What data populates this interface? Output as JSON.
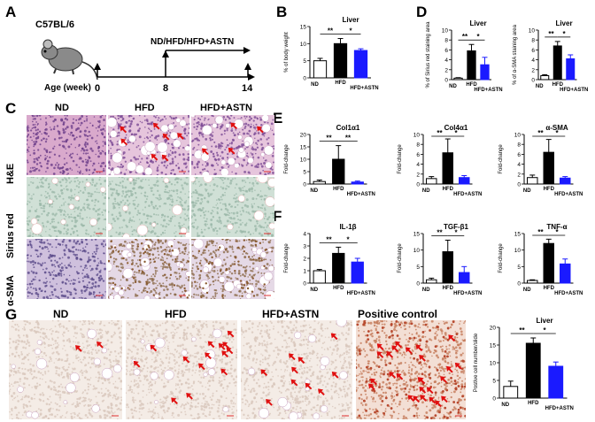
{
  "panels": {
    "A": "A",
    "B": "B",
    "C": "C",
    "D": "D",
    "E": "E",
    "F": "F",
    "G": "G"
  },
  "panelA": {
    "strain": "C57BL/6",
    "treatment": "ND/HFD/HFD+ASTN",
    "age_label": "Age (week)",
    "ticks": [
      "0",
      "8",
      "14"
    ]
  },
  "panelC": {
    "columns": [
      "ND",
      "HFD",
      "HFD+ASTN"
    ],
    "rows": [
      "H&E",
      "Sirius red",
      "α-SMA"
    ]
  },
  "panelG": {
    "columns": [
      "ND",
      "HFD",
      "HFD+ASTN",
      "Positive control"
    ]
  },
  "colors": {
    "nd": "#ffffff",
    "hfd": "#000000",
    "astn": "#1a1aff",
    "arrow": "#e01010"
  },
  "chart_data": [
    {
      "id": "B",
      "type": "bar",
      "title": "Liver",
      "ylabel": "% of body weight",
      "categories": [
        "ND",
        "HFD",
        "HFD+ASTN"
      ],
      "values": [
        5,
        10,
        8
      ],
      "errors": [
        0.7,
        1.5,
        0.5
      ],
      "ylim": [
        0,
        15
      ],
      "yticks": [
        0,
        5,
        10,
        15
      ],
      "sig": [
        {
          "a": 0,
          "b": 1,
          "label": "**"
        },
        {
          "a": 1,
          "b": 2,
          "label": "*"
        }
      ]
    },
    {
      "id": "D1",
      "type": "bar",
      "title": "Liver",
      "ylabel": "% of Sirius red staining area",
      "categories": [
        "ND",
        "HFD",
        "HFD+ASTN"
      ],
      "values": [
        0.3,
        5.8,
        3.0
      ],
      "errors": [
        0.1,
        1.3,
        1.5
      ],
      "ylim": [
        0,
        10
      ],
      "yticks": [
        0,
        2,
        4,
        6,
        8,
        10
      ],
      "sig": [
        {
          "a": 0,
          "b": 1,
          "label": "**"
        },
        {
          "a": 1,
          "b": 2,
          "label": "*"
        }
      ]
    },
    {
      "id": "D2",
      "type": "bar",
      "title": "Liver",
      "ylabel": "% of α-SMA staining area",
      "categories": [
        "ND",
        "HFD",
        "HFD+ASTN"
      ],
      "values": [
        0.8,
        6.8,
        4.2
      ],
      "errors": [
        0.2,
        0.9,
        0.8
      ],
      "ylim": [
        0,
        10
      ],
      "yticks": [
        0,
        2,
        4,
        6,
        8,
        10
      ],
      "sig": [
        {
          "a": 0,
          "b": 1,
          "label": "**"
        },
        {
          "a": 1,
          "b": 2,
          "label": "*"
        }
      ]
    },
    {
      "id": "E1",
      "type": "bar",
      "title": "Col1α1",
      "ylabel": "Fold-change",
      "categories": [
        "ND",
        "HFD",
        "HFD+ASTN"
      ],
      "values": [
        1,
        10,
        0.8
      ],
      "errors": [
        0.6,
        5.5,
        0.4
      ],
      "ylim": [
        0,
        20
      ],
      "yticks": [
        0,
        5,
        10,
        15,
        20
      ],
      "sig": [
        {
          "a": 0,
          "b": 1,
          "label": "**"
        },
        {
          "a": 1,
          "b": 2,
          "label": "**"
        }
      ]
    },
    {
      "id": "E2",
      "type": "bar",
      "title": "Col4α1",
      "ylabel": "Fold-change",
      "categories": [
        "ND",
        "HFD",
        "HFD+ASTN"
      ],
      "values": [
        1.1,
        6.3,
        1.3
      ],
      "errors": [
        0.4,
        2.8,
        0.4
      ],
      "ylim": [
        0,
        10
      ],
      "yticks": [
        0,
        2,
        4,
        6,
        8,
        10
      ],
      "sig": [
        {
          "a": 0,
          "b": 1,
          "label": "**"
        },
        {
          "a": 1,
          "b": 2,
          "label": "*"
        }
      ]
    },
    {
      "id": "E3",
      "type": "bar",
      "title": "α-SMA",
      "ylabel": "Fold-change",
      "categories": [
        "ND",
        "HFD",
        "HFD+ASTN"
      ],
      "values": [
        1.3,
        6.4,
        1.2
      ],
      "errors": [
        0.5,
        2.6,
        0.3
      ],
      "ylim": [
        0,
        10
      ],
      "yticks": [
        0,
        2,
        4,
        6,
        8,
        10
      ],
      "sig": [
        {
          "a": 0,
          "b": 1,
          "label": "**"
        },
        {
          "a": 1,
          "b": 2,
          "label": "*"
        }
      ]
    },
    {
      "id": "F1",
      "type": "bar",
      "title": "IL-1β",
      "ylabel": "Fold-change",
      "categories": [
        "ND",
        "HFD",
        "HFD+ASTN"
      ],
      "values": [
        1.0,
        2.4,
        1.7
      ],
      "errors": [
        0.1,
        0.5,
        0.3
      ],
      "ylim": [
        0,
        4
      ],
      "yticks": [
        0,
        1,
        2,
        3,
        4
      ],
      "sig": [
        {
          "a": 0,
          "b": 1,
          "label": "**"
        },
        {
          "a": 1,
          "b": 2,
          "label": "*"
        }
      ]
    },
    {
      "id": "F2",
      "type": "bar",
      "title": "TGF-β1",
      "ylabel": "Fold-change",
      "categories": [
        "ND",
        "HFD",
        "HFD+ASTN"
      ],
      "values": [
        1.0,
        9.5,
        3.2
      ],
      "errors": [
        0.5,
        3.5,
        1.8
      ],
      "ylim": [
        0,
        15
      ],
      "yticks": [
        0,
        5,
        10,
        15
      ],
      "sig": [
        {
          "a": 0,
          "b": 1,
          "label": "**"
        },
        {
          "a": 1,
          "b": 2,
          "label": "*"
        }
      ]
    },
    {
      "id": "F3",
      "type": "bar",
      "title": "TNF-α",
      "ylabel": "Fold-change",
      "categories": [
        "ND",
        "HFD",
        "HFD+ASTN"
      ],
      "values": [
        0.8,
        12.0,
        5.8
      ],
      "errors": [
        0.2,
        1.3,
        1.5
      ],
      "ylim": [
        0,
        15
      ],
      "yticks": [
        0,
        5,
        10,
        15
      ],
      "sig": [
        {
          "a": 0,
          "b": 1,
          "label": "**"
        },
        {
          "a": 1,
          "b": 2,
          "label": "*"
        }
      ]
    },
    {
      "id": "G",
      "type": "bar",
      "title": "Liver",
      "ylabel": "Postive cell number/slide",
      "categories": [
        "ND",
        "HFD",
        "HFD+ASTN"
      ],
      "values": [
        3.3,
        15.5,
        9.0
      ],
      "errors": [
        1.5,
        1.5,
        1.2
      ],
      "ylim": [
        0,
        20
      ],
      "yticks": [
        0,
        5,
        10,
        15,
        20
      ],
      "sig": [
        {
          "a": 0,
          "b": 1,
          "label": "**"
        },
        {
          "a": 1,
          "b": 2,
          "label": "*"
        }
      ]
    }
  ]
}
